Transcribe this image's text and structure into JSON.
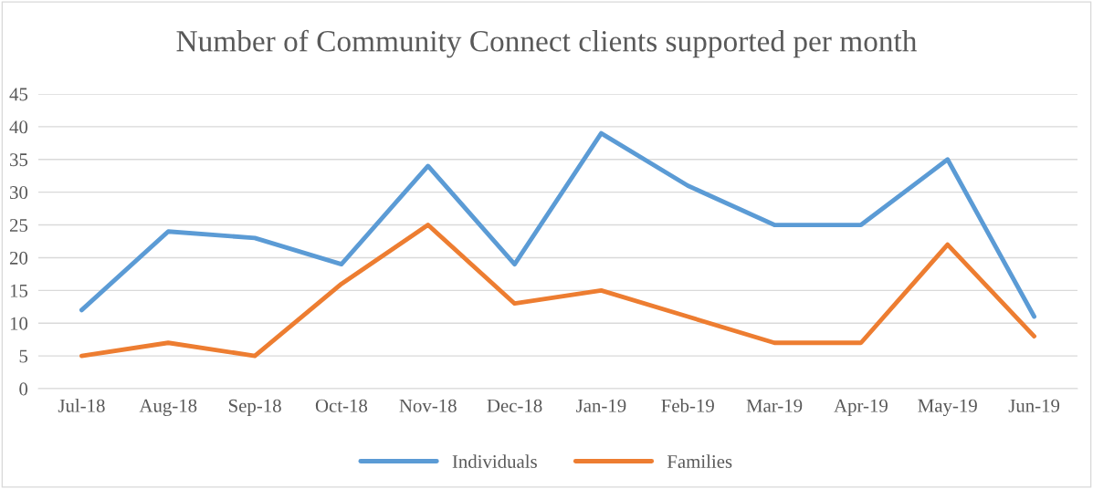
{
  "chart_data": {
    "type": "line",
    "title": "Number of Community Connect clients supported per month",
    "categories": [
      "Jul-18",
      "Aug-18",
      "Sep-18",
      "Oct-18",
      "Nov-18",
      "Dec-18",
      "Jan-19",
      "Feb-19",
      "Mar-19",
      "Apr-19",
      "May-19",
      "Jun-19"
    ],
    "series": [
      {
        "name": "Individuals",
        "color": "#5b9bd5",
        "values": [
          12,
          24,
          23,
          19,
          34,
          19,
          39,
          31,
          25,
          25,
          35,
          11
        ]
      },
      {
        "name": "Families",
        "color": "#ed7d31",
        "values": [
          5,
          7,
          5,
          16,
          25,
          13,
          15,
          11,
          7,
          7,
          22,
          8
        ]
      }
    ],
    "ylim": [
      0,
      45
    ],
    "yticks": [
      0,
      5,
      10,
      15,
      20,
      25,
      30,
      35,
      40,
      45
    ],
    "grid": "y",
    "legend": "bottom",
    "marker": "none",
    "line_style": "solid"
  }
}
